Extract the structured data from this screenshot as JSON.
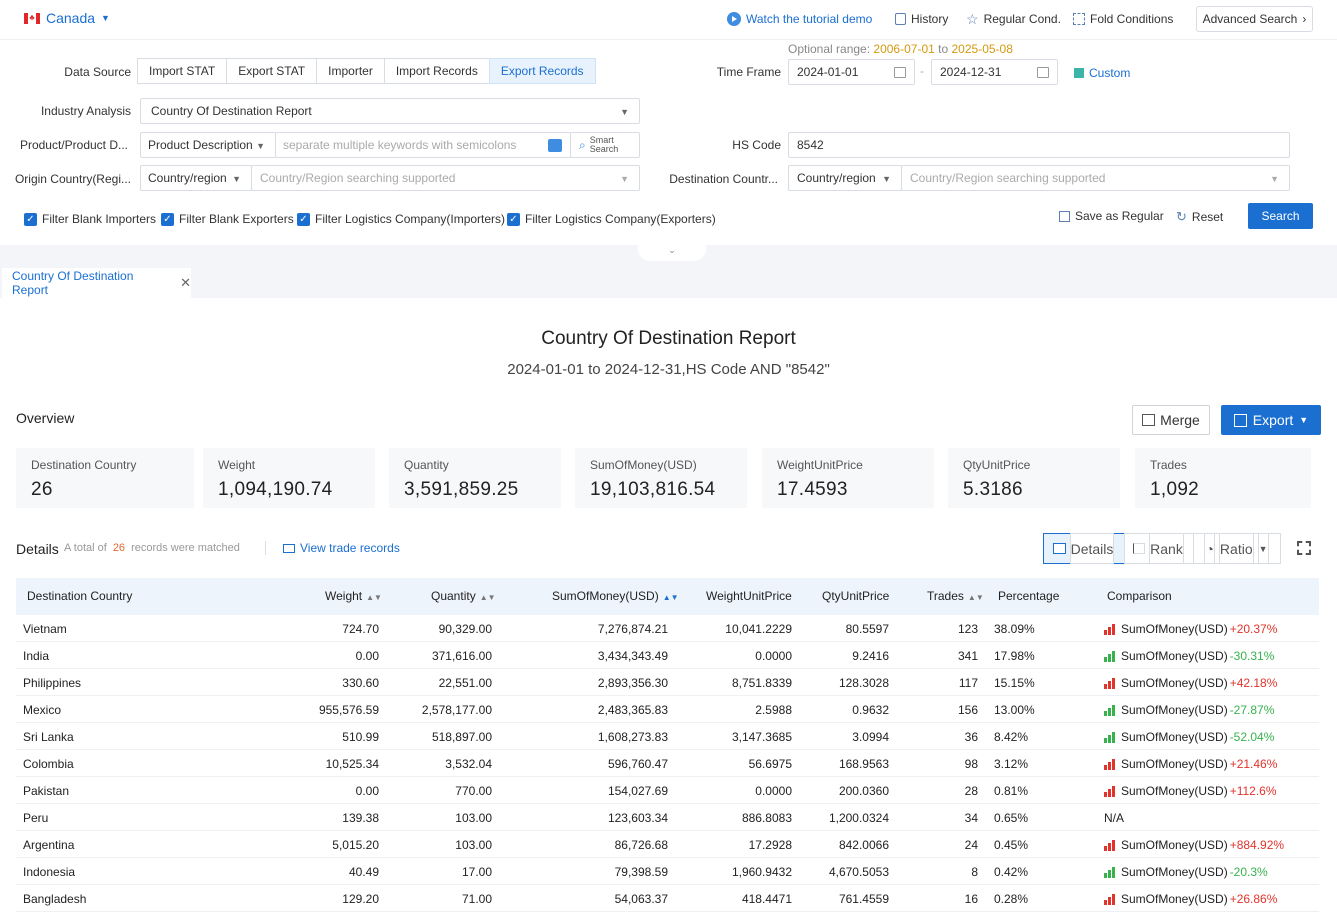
{
  "topbar": {
    "country": "Canada",
    "tutorial": "Watch the tutorial demo",
    "history": "History",
    "regular": "Regular Cond.",
    "fold": "Fold Conditions",
    "advanced": "Advanced Search"
  },
  "filters": {
    "optional_label": "Optional range:",
    "optional_from": "2006-07-01",
    "optional_to_word": "to",
    "optional_to": "2025-05-08",
    "data_source_label": "Data Source",
    "data_sources": [
      "Import STAT",
      "Export STAT",
      "Importer",
      "Import Records",
      "Export Records"
    ],
    "active_source": "Export Records",
    "time_frame_label": "Time Frame",
    "date_from": "2024-01-01",
    "date_to": "2024-12-31",
    "date_sep": "-",
    "custom": "Custom",
    "industry_label": "Industry Analysis",
    "industry_value": "Country Of Destination Report",
    "product_label": "Product/Product D...",
    "product_type": "Product Description",
    "keyword_placeholder": "separate multiple keywords with semicolons",
    "smart_search_1": "Smart",
    "smart_search_2": "Search",
    "hs_label": "HS Code",
    "hs_value": "8542",
    "origin_label": "Origin Country(Regi...",
    "origin_type": "Country/region",
    "origin_placeholder": "Country/Region searching supported",
    "dest_label": "Destination Countr...",
    "dest_type": "Country/region",
    "dest_placeholder": "Country/Region searching supported",
    "checkboxes": [
      "Filter Blank Importers",
      "Filter Blank Exporters",
      "Filter Logistics Company(Importers)",
      "Filter Logistics Company(Exporters)"
    ],
    "save_regular": "Save as Regular",
    "reset": "Reset",
    "search": "Search"
  },
  "tab": {
    "label": "Country Of Destination Report"
  },
  "report": {
    "title": "Country Of Destination Report",
    "subtitle": "2024-01-01 to 2024-12-31,HS Code AND \"8542\"",
    "overview": "Overview",
    "merge": "Merge",
    "export": "Export",
    "cards": [
      {
        "label": "Destination Country",
        "value": "26"
      },
      {
        "label": "Weight",
        "value": "1,094,190.74"
      },
      {
        "label": "Quantity",
        "value": "3,591,859.25"
      },
      {
        "label": "SumOfMoney(USD)",
        "value": "19,103,816.54"
      },
      {
        "label": "WeightUnitPrice",
        "value": "17.4593"
      },
      {
        "label": "QtyUnitPrice",
        "value": "5.3186"
      },
      {
        "label": "Trades",
        "value": "1,092"
      }
    ]
  },
  "details": {
    "title": "Details",
    "total_prefix": "A total of",
    "total_count": "26",
    "total_suffix": "records were matched",
    "view_records": "View trade records",
    "views": [
      "Details",
      "Rank",
      "Ratio"
    ],
    "active_view": "Details",
    "columns": [
      "Destination Country",
      "Weight",
      "Quantity",
      "SumOfMoney(USD)",
      "WeightUnitPrice",
      "QtyUnitPrice",
      "Trades",
      "Percentage",
      "Comparison"
    ],
    "rows": [
      {
        "country": "Vietnam",
        "weight": "724.70",
        "quantity": "90,329.00",
        "money": "7,276,874.21",
        "wup": "10,041.2229",
        "qup": "80.5597",
        "trades": "123",
        "pct": "38.09%",
        "cmp_label": "SumOfMoney(USD)",
        "cmp": "+20.37%",
        "dir": "up"
      },
      {
        "country": "India",
        "weight": "0.00",
        "quantity": "371,616.00",
        "money": "3,434,343.49",
        "wup": "0.0000",
        "qup": "9.2416",
        "trades": "341",
        "pct": "17.98%",
        "cmp_label": "SumOfMoney(USD)",
        "cmp": "-30.31%",
        "dir": "down"
      },
      {
        "country": "Philippines",
        "weight": "330.60",
        "quantity": "22,551.00",
        "money": "2,893,356.30",
        "wup": "8,751.8339",
        "qup": "128.3028",
        "trades": "117",
        "pct": "15.15%",
        "cmp_label": "SumOfMoney(USD)",
        "cmp": "+42.18%",
        "dir": "up"
      },
      {
        "country": "Mexico",
        "weight": "955,576.59",
        "quantity": "2,578,177.00",
        "money": "2,483,365.83",
        "wup": "2.5988",
        "qup": "0.9632",
        "trades": "156",
        "pct": "13.00%",
        "cmp_label": "SumOfMoney(USD)",
        "cmp": "-27.87%",
        "dir": "down"
      },
      {
        "country": "Sri Lanka",
        "weight": "510.99",
        "quantity": "518,897.00",
        "money": "1,608,273.83",
        "wup": "3,147.3685",
        "qup": "3.0994",
        "trades": "36",
        "pct": "8.42%",
        "cmp_label": "SumOfMoney(USD)",
        "cmp": "-52.04%",
        "dir": "down"
      },
      {
        "country": "Colombia",
        "weight": "10,525.34",
        "quantity": "3,532.04",
        "money": "596,760.47",
        "wup": "56.6975",
        "qup": "168.9563",
        "trades": "98",
        "pct": "3.12%",
        "cmp_label": "SumOfMoney(USD)",
        "cmp": "+21.46%",
        "dir": "up"
      },
      {
        "country": "Pakistan",
        "weight": "0.00",
        "quantity": "770.00",
        "money": "154,027.69",
        "wup": "0.0000",
        "qup": "200.0360",
        "trades": "28",
        "pct": "0.81%",
        "cmp_label": "SumOfMoney(USD)",
        "cmp": "+112.6%",
        "dir": "up"
      },
      {
        "country": "Peru",
        "weight": "139.38",
        "quantity": "103.00",
        "money": "123,603.34",
        "wup": "886.8083",
        "qup": "1,200.0324",
        "trades": "34",
        "pct": "0.65%",
        "cmp_label": "",
        "cmp": "N/A",
        "dir": "none"
      },
      {
        "country": "Argentina",
        "weight": "5,015.20",
        "quantity": "103.00",
        "money": "86,726.68",
        "wup": "17.2928",
        "qup": "842.0066",
        "trades": "24",
        "pct": "0.45%",
        "cmp_label": "SumOfMoney(USD)",
        "cmp": "+884.92%",
        "dir": "up"
      },
      {
        "country": "Indonesia",
        "weight": "40.49",
        "quantity": "17.00",
        "money": "79,398.59",
        "wup": "1,960.9432",
        "qup": "4,670.5053",
        "trades": "8",
        "pct": "0.42%",
        "cmp_label": "SumOfMoney(USD)",
        "cmp": "-20.3%",
        "dir": "down"
      },
      {
        "country": "Bangladesh",
        "weight": "129.20",
        "quantity": "71.00",
        "money": "54,063.37",
        "wup": "418.4471",
        "qup": "761.4559",
        "trades": "16",
        "pct": "0.28%",
        "cmp_label": "SumOfMoney(USD)",
        "cmp": "+26.86%",
        "dir": "up"
      }
    ]
  },
  "colors": {
    "accent": "#1a6fd1",
    "up": "#e0342c",
    "down": "#37b24d",
    "date_highlight": "#d49a11",
    "count_highlight": "#e06a2d"
  }
}
